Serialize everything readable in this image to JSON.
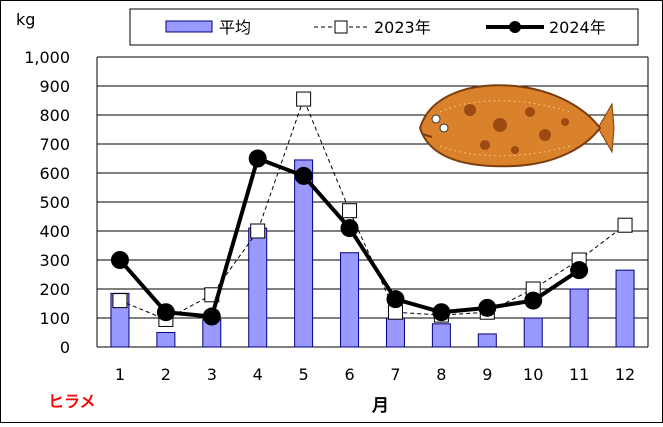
{
  "colors": {
    "bar_fill": "#9999FF",
    "bar_stroke": "#000080",
    "line_2023": "#000000",
    "line_2024": "#000000",
    "species_label": "#FF0000"
  },
  "chart_data": {
    "type": "bar",
    "y_unit": "kg",
    "xlabel": "月",
    "species": "ヒラメ",
    "ylim": [
      0,
      1000
    ],
    "y_ticks": [
      "0",
      "100",
      "200",
      "300",
      "400",
      "500",
      "600",
      "700",
      "800",
      "900",
      "1,000"
    ],
    "categories": [
      "1",
      "2",
      "3",
      "4",
      "5",
      "6",
      "7",
      "8",
      "9",
      "10",
      "11",
      "12"
    ],
    "grid": true,
    "legend_position": "top",
    "image": "flounder-illustration",
    "series": [
      {
        "name": "平均",
        "kind": "bar",
        "values": [
          185,
          50,
          95,
          410,
          645,
          325,
          100,
          80,
          45,
          100,
          200,
          265
        ]
      },
      {
        "name": "2023年",
        "kind": "line-dashed-open-square",
        "values": [
          160,
          95,
          180,
          400,
          855,
          470,
          120,
          110,
          120,
          200,
          300,
          420
        ]
      },
      {
        "name": "2024年",
        "kind": "line-solid-filled-circle",
        "values": [
          300,
          120,
          105,
          650,
          590,
          410,
          165,
          120,
          135,
          160,
          265,
          null
        ]
      }
    ]
  }
}
